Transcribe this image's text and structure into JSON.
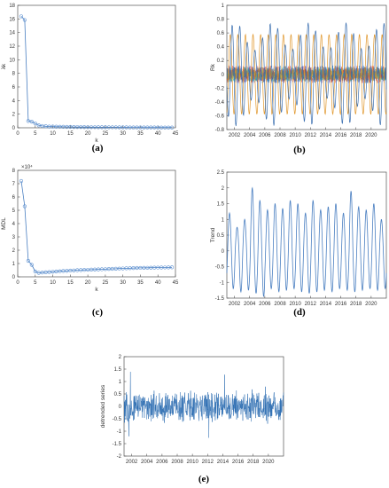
{
  "panels": {
    "a": {
      "caption": "(a)",
      "xlabel": "k",
      "ylabel": "λk",
      "xticks": [
        "0",
        "5",
        "10",
        "15",
        "20",
        "25",
        "30",
        "35",
        "40",
        "45"
      ],
      "yticks": [
        "0",
        "2",
        "4",
        "6",
        "8",
        "10",
        "12",
        "14",
        "16",
        "18"
      ]
    },
    "b": {
      "caption": "(b)",
      "xlabel": "",
      "ylabel": "Rk",
      "xticks": [
        "2002",
        "2004",
        "2006",
        "2008",
        "2010",
        "2012",
        "2014",
        "2016",
        "2018",
        "2020"
      ],
      "yticks": [
        "-0.8",
        "-0.6",
        "-0.4",
        "-0.2",
        "0",
        "0.2",
        "0.4",
        "0.6",
        "0.8",
        "1"
      ]
    },
    "c": {
      "caption": "(c)",
      "xlabel": "k",
      "ylabel": "MDL",
      "exponent": "×10⁴",
      "xticks": [
        "0",
        "5",
        "10",
        "15",
        "20",
        "25",
        "30",
        "35",
        "40",
        "45"
      ],
      "yticks": [
        "0",
        "1",
        "2",
        "3",
        "4",
        "5",
        "6",
        "7",
        "8"
      ]
    },
    "d": {
      "caption": "(d)",
      "xlabel": "",
      "ylabel": "Trend",
      "xticks": [
        "2002",
        "2004",
        "2006",
        "2008",
        "2010",
        "2012",
        "2014",
        "2016",
        "2018",
        "2020"
      ],
      "yticks": [
        "-1.5",
        "-1",
        "-0.5",
        "0",
        "0.5",
        "1",
        "1.5",
        "2",
        "2.5"
      ]
    },
    "e": {
      "caption": "(e)",
      "xlabel": "",
      "ylabel": "detrended series",
      "xticks": [
        "2002",
        "2004",
        "2006",
        "2008",
        "2010",
        "2012",
        "2014",
        "2016",
        "2018",
        "2020"
      ],
      "yticks": [
        "-2",
        "-1.5",
        "-1",
        "-0.5",
        "0",
        "0.5",
        "1",
        "1.5",
        "2"
      ]
    }
  },
  "colors": {
    "line": "#4a7fc1",
    "marker": "#5b8fd0",
    "axis": "#555555",
    "text": "#222222",
    "grid_bg": "#ffffff"
  },
  "chart_data": [
    {
      "type": "scatter",
      "title": "",
      "xlabel": "k",
      "ylabel": "λk",
      "xlim": [
        0,
        45
      ],
      "ylim": [
        0,
        20
      ],
      "x": [
        1,
        2,
        3,
        4,
        5,
        6,
        7,
        8,
        9,
        10,
        11,
        12,
        13,
        14,
        15,
        16,
        17,
        18,
        19,
        20,
        21,
        22,
        23,
        24,
        25,
        26,
        27,
        28,
        29,
        30,
        31,
        32,
        33,
        34,
        35,
        36,
        37,
        38,
        39,
        40,
        41,
        42,
        43,
        44
      ],
      "values": [
        18.2,
        17.6,
        1.1,
        1.0,
        0.7,
        0.4,
        0.3,
        0.25,
        0.2,
        0.2,
        0.18,
        0.17,
        0.16,
        0.15,
        0.14,
        0.13,
        0.12,
        0.12,
        0.11,
        0.1,
        0.1,
        0.1,
        0.09,
        0.09,
        0.09,
        0.08,
        0.08,
        0.08,
        0.07,
        0.07,
        0.07,
        0.06,
        0.06,
        0.06,
        0.06,
        0.05,
        0.05,
        0.05,
        0.05,
        0.05,
        0.04,
        0.04,
        0.04,
        0.04
      ]
    },
    {
      "type": "line",
      "title": "",
      "xlabel": "",
      "ylabel": "Rk",
      "xlim": [
        2001,
        2022
      ],
      "ylim": [
        -0.8,
        1.0
      ],
      "series": [
        {
          "values": "oscillating component, amplitude ~0.8, period 1 year"
        },
        {
          "values": "oscillating component, amplitude ~0.6, period 1 year (orange)"
        },
        {
          "values": "multiple low-amplitude noise components"
        }
      ]
    },
    {
      "type": "scatter",
      "title": "",
      "xlabel": "k",
      "ylabel": "MDL",
      "xlim": [
        0,
        45
      ],
      "ylim": [
        0,
        80000
      ],
      "x": [
        1,
        2,
        3,
        4,
        5,
        6,
        7,
        8,
        9,
        10,
        11,
        12,
        13,
        14,
        15,
        16,
        17,
        18,
        19,
        20,
        21,
        22,
        23,
        24,
        25,
        26,
        27,
        28,
        29,
        30,
        31,
        32,
        33,
        34,
        35,
        36,
        37,
        38,
        39,
        40,
        41,
        42,
        43,
        44
      ],
      "values": [
        72000,
        53000,
        12000,
        9000,
        4000,
        3000,
        3200,
        3400,
        3600,
        3800,
        4000,
        4200,
        4400,
        4500,
        4700,
        4800,
        5000,
        5100,
        5200,
        5300,
        5400,
        5500,
        5600,
        5700,
        5800,
        5900,
        6000,
        6100,
        6200,
        6300,
        6400,
        6500,
        6600,
        6650,
        6700,
        6750,
        6800,
        6850,
        6900,
        6950,
        7000,
        7050,
        7100,
        7150
      ]
    },
    {
      "type": "line",
      "title": "",
      "xlabel": "",
      "ylabel": "Trend",
      "xlim": [
        2001,
        2022
      ],
      "ylim": [
        -1.5,
        2.5
      ],
      "series": [
        {
          "values": "annual oscillation, peaks ~1.2–2.0, troughs ~-1.2 to -1.4"
        }
      ]
    },
    {
      "type": "line",
      "title": "",
      "xlabel": "",
      "ylabel": "detrended series",
      "xlim": [
        2001,
        2022
      ],
      "ylim": [
        -2,
        2
      ],
      "series": [
        {
          "values": "noisy series centred on 0, range approx -1.6 to 1.7"
        }
      ]
    }
  ]
}
